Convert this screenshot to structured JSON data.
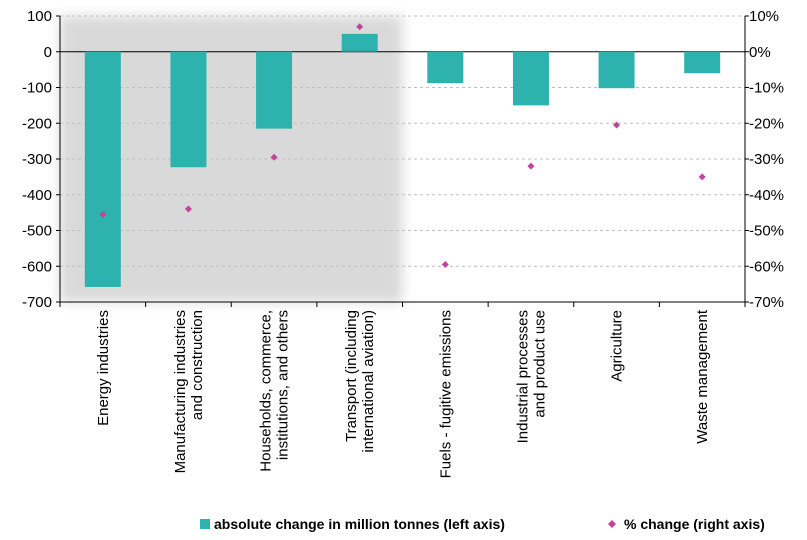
{
  "chart_data": {
    "type": "bar",
    "categories": [
      [
        "Energy industries"
      ],
      [
        "Manufacturing industries",
        "and construction"
      ],
      [
        "Households, commerce,",
        "institutions, and others"
      ],
      [
        "Transport (including",
        "international aviation)"
      ],
      [
        "Fuels - fugitive emissions"
      ],
      [
        "Industrial processes",
        "and product use"
      ],
      [
        "Agriculture"
      ],
      [
        "Waste management"
      ]
    ],
    "series": [
      {
        "name": "absolute change in million tonnes (left axis)",
        "type": "bar",
        "axis": "left",
        "values": [
          -658,
          -323,
          -215,
          50,
          -88,
          -150,
          -102,
          -60
        ]
      },
      {
        "name": "% change (right axis)",
        "type": "scatter",
        "axis": "right",
        "values": [
          -45.5,
          -44,
          -29.5,
          7,
          -59.5,
          -32,
          -20.5,
          -35
        ]
      }
    ],
    "left_axis": {
      "ylim": [
        -700,
        100
      ],
      "ticks": [
        "100",
        "0",
        "-100",
        "-200",
        "-300",
        "-400",
        "-500",
        "-600",
        "-700"
      ]
    },
    "right_axis": {
      "ylim": [
        -70,
        10
      ],
      "ticks": [
        "10%",
        "0%",
        "-10%",
        "-20%",
        "-30%",
        "-40%",
        "-50%",
        "-60%",
        "-70%"
      ]
    },
    "grid": true,
    "highlight_categories": [
      0,
      1,
      2,
      3
    ],
    "legend_position": "bottom",
    "colors": {
      "bar": "#2EB2AE",
      "marker": "#C2449C",
      "grid": "#BFBFBF",
      "highlight": "#D9D9D9"
    }
  }
}
